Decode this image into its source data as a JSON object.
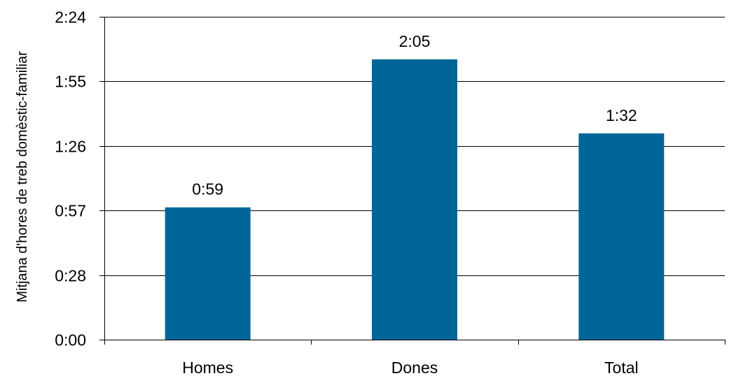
{
  "chart_data": {
    "type": "bar",
    "categories": [
      "Homes",
      "Dones",
      "Total"
    ],
    "values": [
      59,
      125,
      92
    ],
    "data_labels": [
      "0:59",
      "2:05",
      "1:32"
    ],
    "ylabel": "Mitjana d'hores de treb domèstic-familiar",
    "xlabel": "",
    "ylim": [
      0,
      144
    ],
    "yticks": [
      0,
      28.8,
      57.6,
      86.4,
      115.2,
      144
    ],
    "ytick_labels": [
      "0:00",
      "0:28",
      "0:57",
      "1:26",
      "1:55",
      "2:24"
    ],
    "bar_color": "#006699",
    "grid": true,
    "legend": "none"
  }
}
